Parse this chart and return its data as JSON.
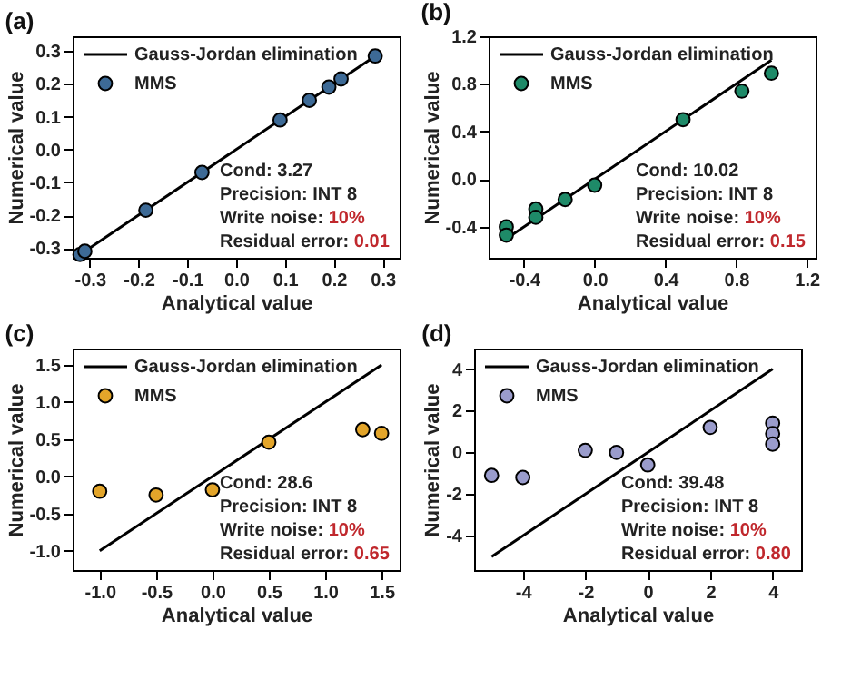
{
  "chart_data": [
    {
      "type": "scatter",
      "title": "(a)",
      "xlabel": "Analytical value",
      "ylabel": "Numerical value",
      "legend": "top left",
      "xlim": [
        -0.335,
        0.335
      ],
      "ylim": [
        -0.33,
        0.345
      ],
      "xticks": [
        -0.3,
        -0.2,
        -0.1,
        {
          "value": 0,
          "label": "0.0"
        },
        0.1,
        0.2,
        0.3
      ],
      "yticks": [
        -0.3,
        -0.2,
        -0.1,
        {
          "value": 0,
          "label": "0.0"
        },
        0.1,
        0.2,
        0.3
      ],
      "annotations": [
        "Cond: 3.27",
        "Precision: INT 8",
        "Write noise: 10%",
        "Residual error: 0.01"
      ],
      "series": [
        {
          "name": "Gauss-Jordan elimination",
          "type": "line",
          "color": "#000000",
          "x": [
            -0.32,
            0.29
          ],
          "values": [
            -0.32,
            0.29
          ]
        },
        {
          "name": "MMS",
          "marker": "circle",
          "color": "#3d6a96",
          "x": [
            -0.32,
            -0.31,
            -0.185,
            -0.07,
            0.09,
            0.15,
            0.19,
            0.215,
            0.285
          ],
          "values": [
            -0.32,
            -0.31,
            -0.185,
            -0.07,
            0.09,
            0.15,
            0.19,
            0.215,
            0.285
          ]
        }
      ]
    },
    {
      "type": "scatter",
      "title": "(b)",
      "xlabel": "Analytical value",
      "ylabel": "Numerical value",
      "legend": "top left",
      "xlim": [
        -0.6,
        1.25
      ],
      "ylim": [
        -0.66,
        1.2
      ],
      "xticks": [
        -0.4,
        {
          "value": 0,
          "label": "0.0"
        },
        0.4,
        0.8,
        1.2
      ],
      "yticks": [
        -0.4,
        {
          "value": 0,
          "label": "0.0"
        },
        0.4,
        0.8,
        1.2
      ],
      "annotations": [
        "Cond: 10.02",
        "Precision: INT 8",
        "Write noise: 10%",
        "Residual error: 0.15"
      ],
      "series": [
        {
          "name": "Gauss-Jordan elimination",
          "type": "line",
          "color": "#000000",
          "x": [
            -0.5,
            1.0
          ],
          "values": [
            -0.5,
            1.0
          ]
        },
        {
          "name": "MMS",
          "marker": "circle",
          "color": "#1e8a68",
          "x": [
            -0.5,
            -0.5,
            -0.333,
            -0.333,
            -0.167,
            0,
            0.5,
            0.833,
            1.0
          ],
          "values": [
            -0.4,
            -0.47,
            -0.25,
            -0.32,
            -0.17,
            -0.05,
            0.5,
            0.74,
            0.89
          ]
        }
      ]
    },
    {
      "type": "scatter",
      "title": "(c)",
      "xlabel": "Analytical value",
      "ylabel": "Numerical value",
      "legend": "top left",
      "xlim": [
        -1.24,
        1.66
      ],
      "ylim": [
        -1.26,
        1.72
      ],
      "xticks": [
        {
          "value": -1,
          "label": "-1.0"
        },
        -0.5,
        {
          "value": 0,
          "label": "0.0"
        },
        0.5,
        {
          "value": 1,
          "label": "1.0"
        },
        1.5
      ],
      "yticks": [
        {
          "value": -1,
          "label": "-1.0"
        },
        -0.5,
        {
          "value": 0,
          "label": "0.0"
        },
        0.5,
        {
          "value": 1,
          "label": "1.0"
        },
        1.5
      ],
      "annotations": [
        "Cond: 28.6",
        "Precision: INT 8",
        "Write noise: 10%",
        "Residual error: 0.65"
      ],
      "series": [
        {
          "name": "Gauss-Jordan elimination",
          "type": "line",
          "color": "#000000",
          "x": [
            -1.0,
            1.5
          ],
          "values": [
            -1.0,
            1.5
          ]
        },
        {
          "name": "MMS",
          "marker": "circle",
          "color": "#e3a52a",
          "x": [
            -1.0,
            -0.5,
            0,
            0.5,
            1.333,
            1.5
          ],
          "values": [
            -0.2,
            -0.25,
            -0.18,
            0.46,
            0.63,
            0.58
          ]
        }
      ]
    },
    {
      "type": "scatter",
      "title": "(d)",
      "xlabel": "Analytical value",
      "ylabel": "Numerical value",
      "legend": "top left",
      "xlim": [
        -5.56,
        4.91
      ],
      "ylim": [
        -5.64,
        4.98
      ],
      "xticks": [
        -4,
        -2,
        0,
        2,
        4
      ],
      "yticks": [
        -4,
        -2,
        0,
        2,
        4
      ],
      "annotations": [
        "Cond: 39.48",
        "Precision: INT 8",
        "Write noise: 10%",
        "Residual error: 0.80"
      ],
      "series": [
        {
          "name": "Gauss-Jordan elimination",
          "type": "line",
          "color": "#000000",
          "x": [
            -5,
            4
          ],
          "values": [
            -5,
            4
          ]
        },
        {
          "name": "MMS",
          "marker": "circle",
          "color": "#9a9ccc",
          "x": [
            -5,
            -4,
            -2,
            -1,
            0,
            2,
            4,
            4,
            4
          ],
          "values": [
            -1.1,
            -1.2,
            0.1,
            0.0,
            -0.6,
            1.2,
            1.4,
            0.9,
            0.4
          ]
        }
      ]
    }
  ]
}
